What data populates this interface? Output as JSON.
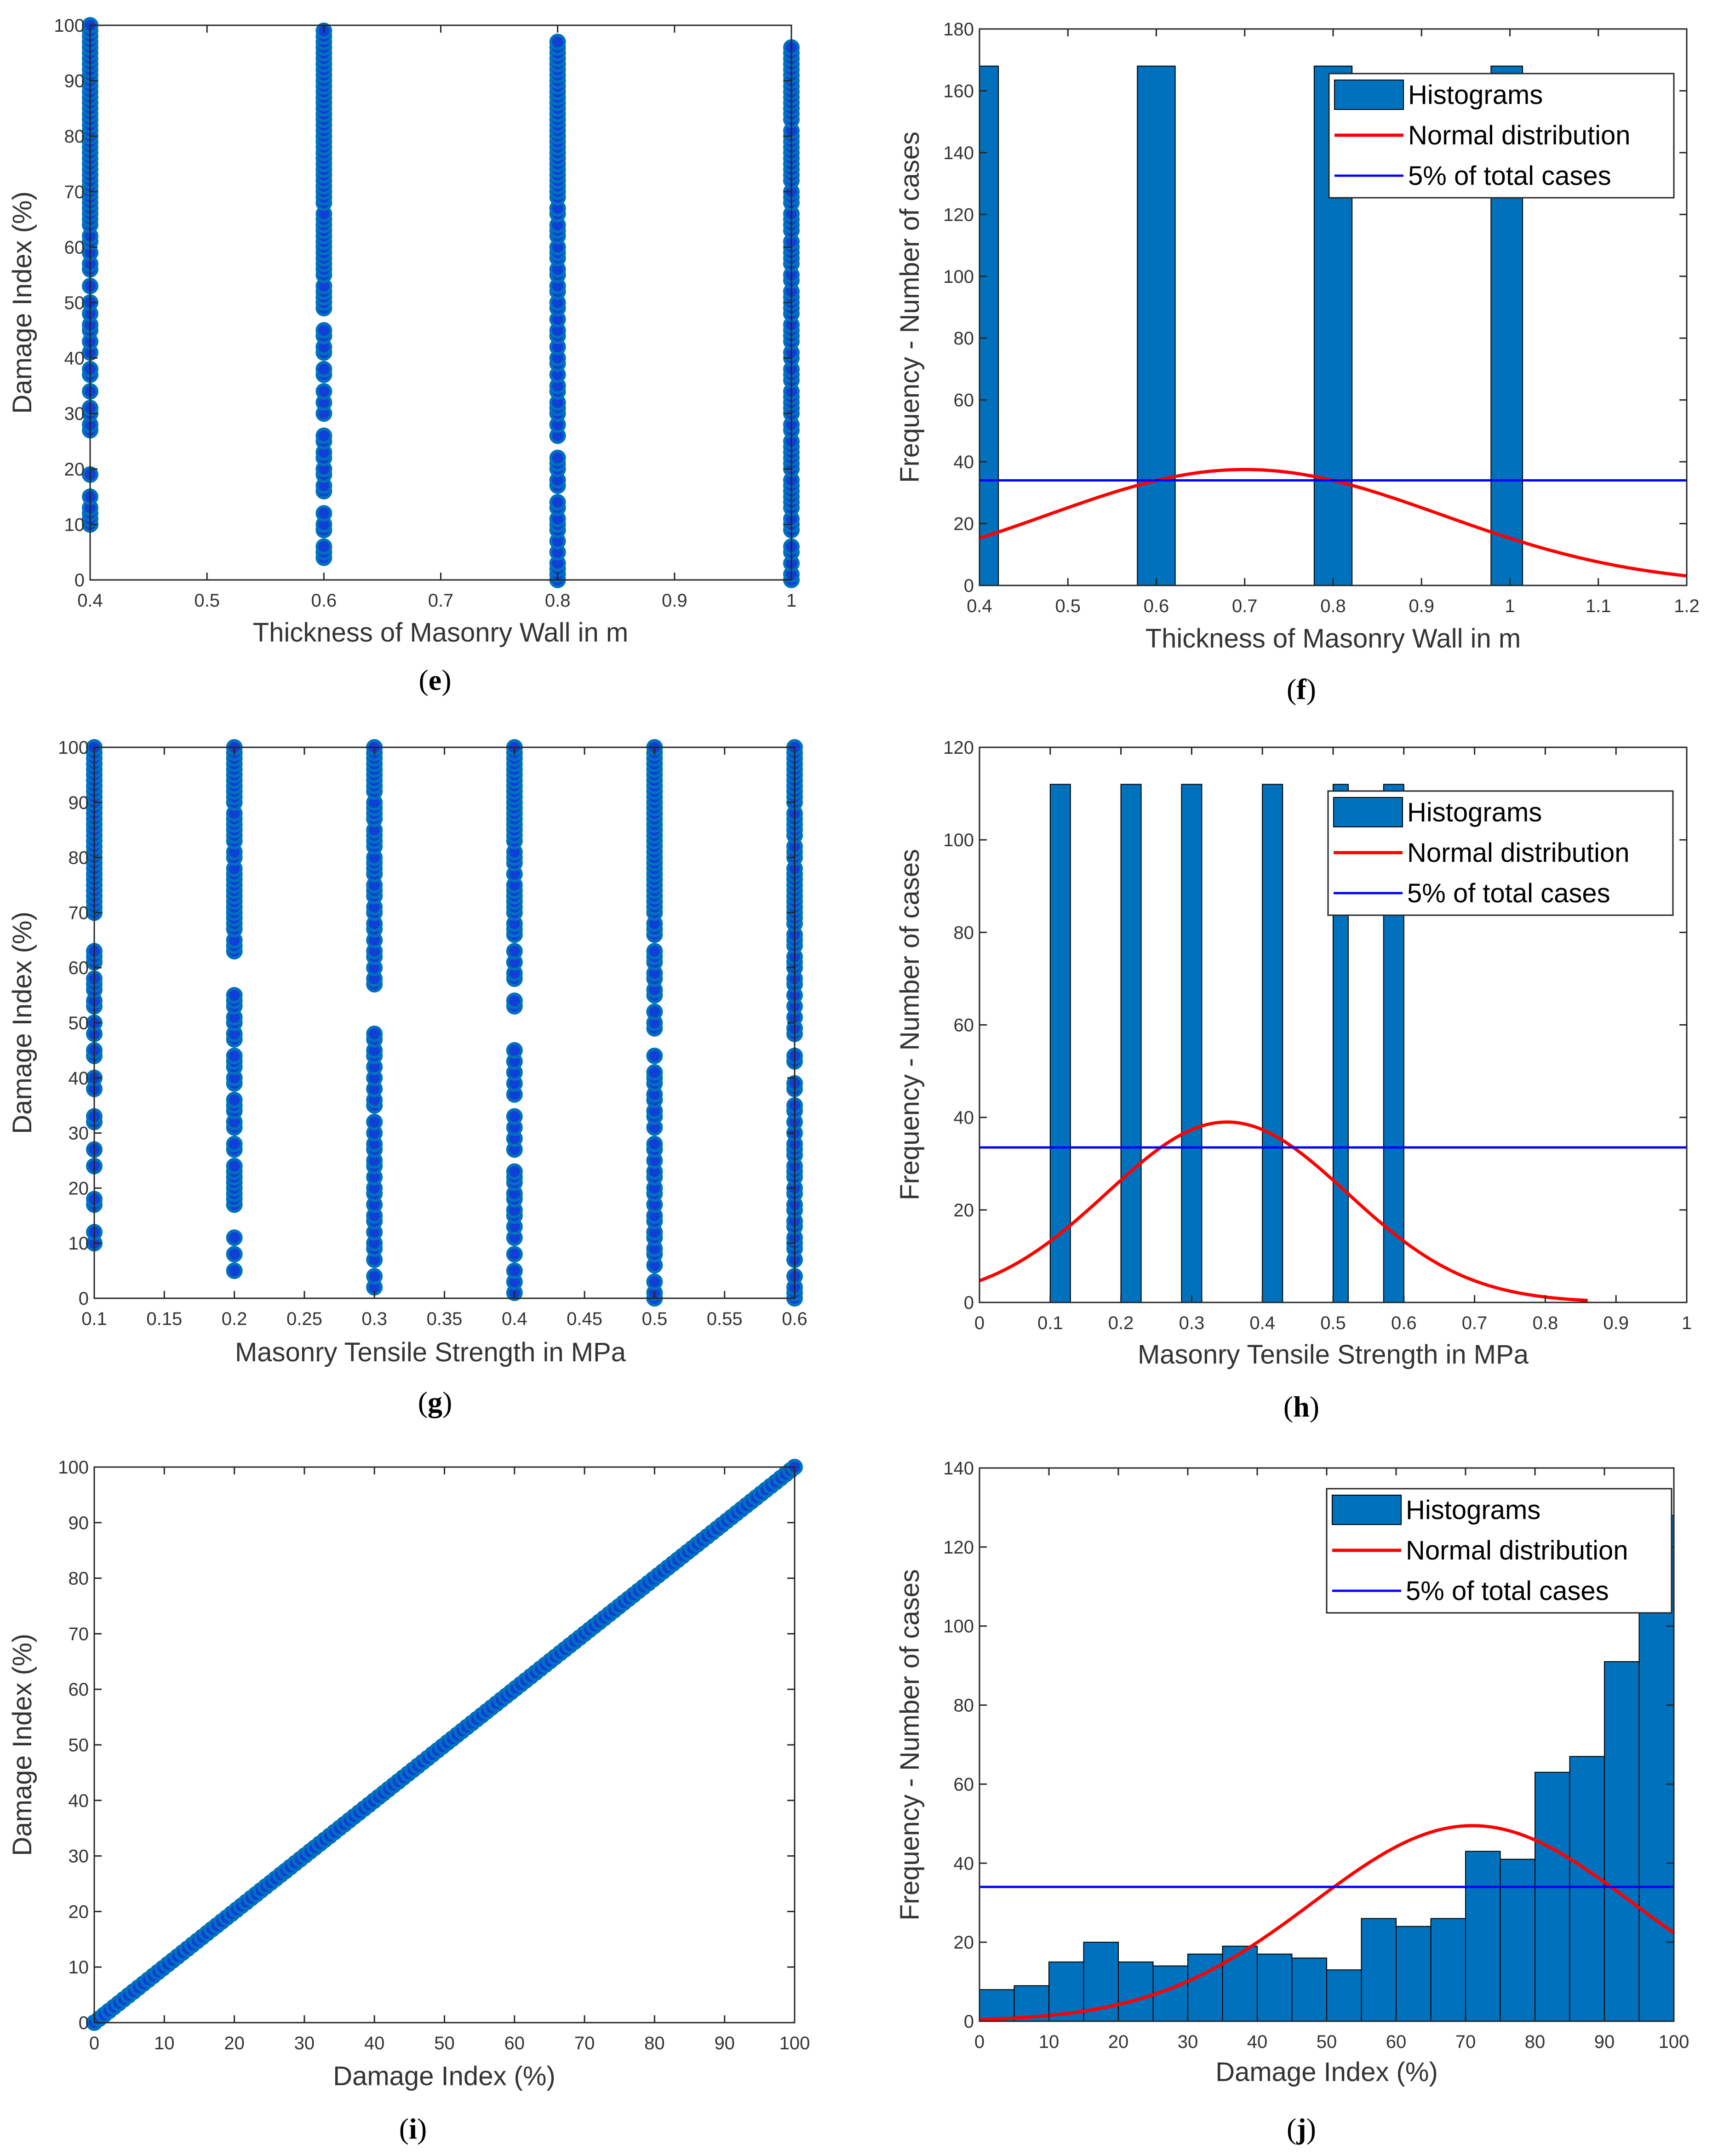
{
  "chart_data": [
    {
      "id": "e",
      "panel_label": "e",
      "type": "scatter",
      "title": "",
      "xlabel": "Thickness of Masonry Wall in m",
      "ylabel": "Damage Index (%)",
      "xlim": [
        0.4,
        1.0
      ],
      "ylim": [
        0,
        100
      ],
      "xticks": [
        0.4,
        0.5,
        0.6,
        0.7,
        0.8,
        0.9,
        1
      ],
      "yticks": [
        0,
        10,
        20,
        30,
        40,
        50,
        60,
        70,
        80,
        90,
        100
      ],
      "xtick_labels": [
        "0.4",
        "0.5",
        "0.6",
        "0.7",
        "0.8",
        "0.9",
        "1"
      ],
      "ytick_labels": [
        "0",
        "10",
        "20",
        "30",
        "40",
        "50",
        "60",
        "70",
        "80",
        "90",
        "100"
      ],
      "series": [
        {
          "x": 0.4,
          "y": [
            10,
            11,
            12,
            13,
            15,
            19,
            27,
            28,
            30,
            31,
            34,
            37,
            38,
            41,
            43,
            45,
            46,
            48,
            50,
            53,
            56,
            57,
            59,
            61,
            62,
            64,
            65,
            66,
            67,
            68,
            69,
            70,
            71,
            72,
            73,
            74,
            75,
            76,
            77,
            78,
            79,
            80,
            81,
            82,
            83,
            84,
            85,
            86,
            87,
            88,
            89,
            90,
            91,
            92,
            93,
            94,
            95,
            96,
            97,
            98,
            99,
            100
          ]
        },
        {
          "x": 0.6,
          "y": [
            4,
            5,
            6,
            9,
            10,
            12,
            16,
            17,
            19,
            20,
            22,
            23,
            25,
            26,
            30,
            32,
            34,
            37,
            38,
            41,
            42,
            44,
            45,
            49,
            50,
            51,
            52,
            53,
            55,
            56,
            57,
            58,
            59,
            60,
            61,
            62,
            63,
            64,
            65,
            66,
            68,
            69,
            70,
            71,
            72,
            73,
            74,
            75,
            76,
            77,
            78,
            79,
            80,
            81,
            82,
            83,
            84,
            85,
            86,
            87,
            88,
            89,
            90,
            91,
            92,
            93,
            94,
            95,
            96,
            97,
            98,
            99
          ]
        },
        {
          "x": 0.8,
          "y": [
            0,
            1,
            2,
            3,
            5,
            7,
            9,
            10,
            11,
            13,
            14,
            17,
            18,
            20,
            21,
            22,
            26,
            28,
            30,
            31,
            32,
            34,
            35,
            37,
            39,
            40,
            42,
            44,
            45,
            47,
            49,
            50,
            52,
            53,
            55,
            56,
            58,
            59,
            60,
            62,
            63,
            64,
            66,
            67,
            69,
            70,
            71,
            72,
            73,
            74,
            75,
            76,
            77,
            78,
            79,
            80,
            81,
            82,
            83,
            84,
            85,
            86,
            87,
            88,
            89,
            90,
            91,
            92,
            93,
            94,
            95,
            96,
            97
          ]
        },
        {
          "x": 1.0,
          "y": [
            0,
            1,
            3,
            5,
            6,
            9,
            10,
            11,
            13,
            14,
            15,
            16,
            17,
            18,
            20,
            21,
            22,
            23,
            24,
            25,
            27,
            28,
            30,
            31,
            32,
            33,
            34,
            36,
            37,
            38,
            40,
            41,
            43,
            44,
            45,
            46,
            48,
            49,
            50,
            51,
            52,
            54,
            55,
            57,
            58,
            59,
            60,
            61,
            63,
            64,
            65,
            66,
            68,
            69,
            70,
            72,
            73,
            74,
            75,
            76,
            77,
            78,
            79,
            80,
            81,
            83,
            84,
            85,
            86,
            87,
            88,
            89,
            90,
            91,
            92,
            93,
            94,
            95,
            96
          ]
        }
      ]
    },
    {
      "id": "f",
      "panel_label": "f",
      "type": "bar",
      "title": "",
      "xlabel": "Thickness of Masonry Wall in m",
      "ylabel": "Frequency - Number of cases",
      "xlim": [
        0.4,
        1.2
      ],
      "ylim": [
        0,
        180
      ],
      "xticks": [
        0.4,
        0.5,
        0.6,
        0.7,
        0.8,
        0.9,
        1,
        1.1,
        1.2
      ],
      "yticks": [
        0,
        20,
        40,
        60,
        80,
        100,
        120,
        140,
        160,
        180
      ],
      "xtick_labels": [
        "0.4",
        "0.5",
        "0.6",
        "0.7",
        "0.8",
        "0.9",
        "1",
        "1.1",
        "1.2"
      ],
      "ytick_labels": [
        "0",
        "20",
        "40",
        "60",
        "80",
        "100",
        "120",
        "140",
        "160",
        "180"
      ],
      "bars": [
        {
          "x0": 0.4,
          "x1": 0.4214,
          "value": 168
        },
        {
          "x0": 0.5786,
          "x1": 0.6214,
          "value": 168
        },
        {
          "x0": 0.7786,
          "x1": 0.8214,
          "value": 168
        },
        {
          "x0": 0.9786,
          "x1": 1.0143,
          "value": 168
        }
      ],
      "normal_curve": {
        "mean": 0.7,
        "sd": 0.2238,
        "peak": 37.5,
        "x_range": [
          0.4,
          1.2
        ]
      },
      "reference_line": 34,
      "legend": [
        "Histograms",
        "Normal distribution",
        "5% of total cases"
      ],
      "legend_position": "top-right"
    },
    {
      "id": "g",
      "panel_label": "g",
      "type": "scatter",
      "title": "",
      "xlabel": "Masonry Tensile Strength in MPa",
      "ylabel": "Damage Index (%)",
      "xlim": [
        0.1,
        0.6
      ],
      "ylim": [
        0,
        100
      ],
      "xticks": [
        0.1,
        0.15,
        0.2,
        0.25,
        0.3,
        0.35,
        0.4,
        0.45,
        0.5,
        0.55,
        0.6
      ],
      "yticks": [
        0,
        10,
        20,
        30,
        40,
        50,
        60,
        70,
        80,
        90,
        100
      ],
      "xtick_labels": [
        "0.1",
        "0.15",
        "0.2",
        "0.25",
        "0.3",
        "0.35",
        "0.4",
        "0.45",
        "0.5",
        "0.55",
        "0.6"
      ],
      "ytick_labels": [
        "0",
        "10",
        "20",
        "30",
        "40",
        "50",
        "60",
        "70",
        "80",
        "90",
        "100"
      ],
      "series": [
        {
          "x": 0.1,
          "y": [
            10,
            12,
            17,
            18,
            24,
            27,
            32,
            33,
            38,
            40,
            44,
            45,
            48,
            50,
            53,
            54,
            56,
            57,
            58,
            61,
            62,
            63,
            70,
            71,
            72,
            73,
            74,
            75,
            76,
            77,
            78,
            79,
            80,
            81,
            82,
            83,
            84,
            85,
            86,
            87,
            88,
            89,
            90,
            91,
            92,
            93,
            94,
            95,
            96,
            97,
            98,
            99,
            100
          ]
        },
        {
          "x": 0.2,
          "y": [
            5,
            8,
            11,
            17,
            18,
            19,
            20,
            21,
            22,
            23,
            24,
            27,
            28,
            31,
            32,
            34,
            35,
            36,
            39,
            40,
            42,
            43,
            44,
            47,
            48,
            50,
            51,
            53,
            54,
            55,
            63,
            64,
            65,
            67,
            68,
            69,
            70,
            71,
            72,
            73,
            74,
            75,
            76,
            77,
            78,
            80,
            81,
            83,
            84,
            85,
            86,
            87,
            88,
            90,
            91,
            92,
            93,
            94,
            95,
            96,
            97,
            98,
            99,
            100
          ]
        },
        {
          "x": 0.3,
          "y": [
            2,
            4,
            7,
            9,
            10,
            12,
            14,
            15,
            17,
            19,
            20,
            22,
            24,
            25,
            27,
            28,
            30,
            32,
            35,
            36,
            38,
            40,
            42,
            44,
            45,
            47,
            48,
            57,
            58,
            60,
            62,
            63,
            65,
            67,
            68,
            70,
            71,
            73,
            74,
            75,
            77,
            78,
            79,
            80,
            82,
            83,
            84,
            85,
            87,
            88,
            89,
            90,
            92,
            93,
            94,
            95,
            96,
            97,
            98,
            99,
            100
          ]
        },
        {
          "x": 0.4,
          "y": [
            1,
            3,
            5,
            8,
            11,
            13,
            15,
            16,
            18,
            19,
            21,
            22,
            23,
            27,
            29,
            31,
            33,
            37,
            39,
            41,
            43,
            45,
            53,
            54,
            58,
            59,
            61,
            63,
            66,
            67,
            68,
            70,
            71,
            72,
            73,
            74,
            75,
            77,
            79,
            80,
            81,
            83,
            84,
            85,
            86,
            87,
            88,
            89,
            90,
            91,
            92,
            93,
            94,
            95,
            96,
            97,
            98,
            99,
            100
          ]
        },
        {
          "x": 0.5,
          "y": [
            0,
            1,
            3,
            6,
            8,
            9,
            11,
            12,
            14,
            15,
            17,
            19,
            20,
            22,
            23,
            25,
            27,
            28,
            31,
            33,
            34,
            36,
            37,
            39,
            40,
            41,
            44,
            49,
            50,
            52,
            55,
            56,
            58,
            59,
            61,
            62,
            63,
            66,
            67,
            68,
            70,
            71,
            72,
            73,
            74,
            75,
            76,
            77,
            78,
            79,
            80,
            81,
            82,
            83,
            84,
            85,
            86,
            87,
            88,
            89,
            90,
            91,
            92,
            93,
            94,
            95,
            96,
            97,
            98,
            99,
            100
          ]
        },
        {
          "x": 0.6,
          "y": [
            0,
            1,
            2,
            4,
            7,
            9,
            10,
            11,
            13,
            14,
            16,
            17,
            19,
            20,
            22,
            23,
            24,
            26,
            27,
            28,
            30,
            32,
            34,
            35,
            38,
            39,
            43,
            44,
            48,
            49,
            51,
            53,
            55,
            57,
            58,
            60,
            61,
            62,
            64,
            65,
            66,
            68,
            69,
            70,
            71,
            72,
            73,
            74,
            75,
            76,
            77,
            78,
            80,
            81,
            82,
            84,
            85,
            86,
            87,
            88,
            90,
            91,
            92,
            93,
            94,
            95,
            96,
            97,
            98,
            99,
            100
          ]
        }
      ]
    },
    {
      "id": "h",
      "panel_label": "h",
      "type": "bar",
      "title": "",
      "xlabel": "Masonry Tensile Strength in MPa",
      "ylabel": "Frequency - Number of cases",
      "xlim": [
        0,
        1
      ],
      "ylim": [
        0,
        120
      ],
      "xticks": [
        0,
        0.1,
        0.2,
        0.3,
        0.4,
        0.5,
        0.6,
        0.7,
        0.8,
        0.9,
        1
      ],
      "yticks": [
        0,
        20,
        40,
        60,
        80,
        100,
        120
      ],
      "xtick_labels": [
        "0",
        "0.1",
        "0.2",
        "0.3",
        "0.4",
        "0.5",
        "0.6",
        "0.7",
        "0.8",
        "0.9",
        "1"
      ],
      "ytick_labels": [
        "0",
        "20",
        "40",
        "60",
        "80",
        "100",
        "120"
      ],
      "bars": [
        {
          "x0": 0.1,
          "x1": 0.1286,
          "value": 112
        },
        {
          "x0": 0.2,
          "x1": 0.2286,
          "value": 112
        },
        {
          "x0": 0.2857,
          "x1": 0.3143,
          "value": 112
        },
        {
          "x0": 0.4,
          "x1": 0.4286,
          "value": 112
        },
        {
          "x0": 0.5,
          "x1": 0.5214,
          "value": 112
        },
        {
          "x0": 0.5714,
          "x1": 0.6,
          "value": 112
        }
      ],
      "normal_curve": {
        "mean": 0.35,
        "sd": 0.17,
        "peak": 39,
        "x_range": [
          0,
          0.86
        ]
      },
      "reference_line": 33.5,
      "legend": [
        "Histograms",
        "Normal distribution",
        "5% of total cases"
      ],
      "legend_position": "top-right"
    },
    {
      "id": "i",
      "panel_label": "i",
      "type": "scatter",
      "title": "",
      "xlabel": "Damage Index (%)",
      "ylabel": "Damage Index (%)",
      "xlim": [
        0,
        100
      ],
      "ylim": [
        0,
        100
      ],
      "xticks": [
        0,
        10,
        20,
        30,
        40,
        50,
        60,
        70,
        80,
        90,
        100
      ],
      "yticks": [
        0,
        10,
        20,
        30,
        40,
        50,
        60,
        70,
        80,
        90,
        100
      ],
      "xtick_labels": [
        "0",
        "10",
        "20",
        "30",
        "40",
        "50",
        "60",
        "70",
        "80",
        "90",
        "100"
      ],
      "ytick_labels": [
        "0",
        "10",
        "20",
        "30",
        "40",
        "50",
        "60",
        "70",
        "80",
        "90",
        "100"
      ],
      "diagonal": {
        "from": 0,
        "to": 100,
        "step": 0.7
      }
    },
    {
      "id": "j",
      "panel_label": "j",
      "type": "bar",
      "title": "",
      "xlabel": "Damage Index (%)",
      "ylabel": "Frequency - Number of cases",
      "xlim": [
        0,
        100
      ],
      "ylim": [
        0,
        140
      ],
      "xticks": [
        0,
        10,
        20,
        30,
        40,
        50,
        60,
        70,
        80,
        90,
        100
      ],
      "yticks": [
        0,
        20,
        40,
        60,
        80,
        100,
        120,
        140
      ],
      "xtick_labels": [
        "0",
        "10",
        "20",
        "30",
        "40",
        "50",
        "60",
        "70",
        "80",
        "90",
        "100"
      ],
      "ytick_labels": [
        "0",
        "20",
        "40",
        "60",
        "80",
        "100",
        "120",
        "140"
      ],
      "bin_width": 5,
      "bin_starts": [
        0,
        5,
        10,
        15,
        20,
        25,
        30,
        35,
        40,
        45,
        50,
        55,
        60,
        65,
        70,
        75,
        80,
        85,
        90,
        95
      ],
      "values": [
        8,
        9,
        15,
        20,
        15,
        14,
        17,
        19,
        17,
        16,
        13,
        26,
        24,
        26,
        43,
        41,
        63,
        67,
        91,
        128
      ],
      "normal_curve": {
        "mean": 71,
        "sd": 23,
        "peak": 49.5,
        "x_range": [
          0,
          100
        ]
      },
      "reference_line": 34,
      "legend": [
        "Histograms",
        "Normal distribution",
        "5% of total cases"
      ],
      "legend_position": "top-right"
    }
  ]
}
